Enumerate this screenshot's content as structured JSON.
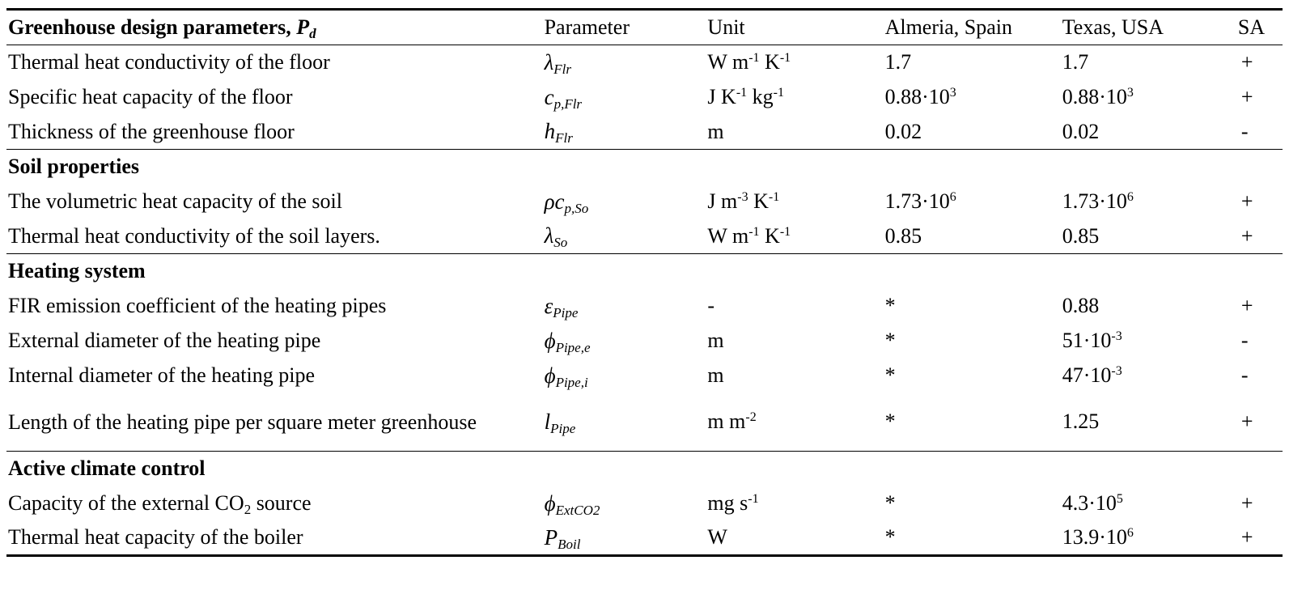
{
  "header": {
    "group_title": "Greenhouse design parameters, ",
    "group_symbol": "P",
    "group_symbol_sub": "d",
    "parameter": "Parameter",
    "unit": "Unit",
    "almeria": "Almeria, Spain",
    "texas": "Texas, USA",
    "sa": "SA"
  },
  "sections": {
    "soil": "Soil properties",
    "heating": "Heating system",
    "climate": "Active climate control"
  },
  "rows": [
    {
      "label": "Thermal heat conductivity of the floor",
      "sym": "λ",
      "sub": "Flr",
      "unit_a": "W m",
      "unit_a_sup": "-1",
      "unit_b": " K",
      "unit_b_sup": "-1",
      "almeria": "1.7",
      "texas": "1.7",
      "sa": "+"
    },
    {
      "label": "Specific heat capacity of the floor",
      "sym": "c",
      "sub": "p,Flr",
      "unit_a": "J K",
      "unit_a_sup": "-1",
      "unit_b": " kg",
      "unit_b_sup": "-1",
      "almeria_base": "0.88·10",
      "almeria_sup": "3",
      "texas_base": "0.88·10",
      "texas_sup": "3",
      "sa": "+"
    },
    {
      "label": "Thickness of the greenhouse floor",
      "sym": "h",
      "sub": "Flr",
      "unit": "m",
      "almeria": "0.02",
      "texas": "0.02",
      "sa": "-"
    },
    {
      "label": "The volumetric heat capacity of the soil",
      "sym": "ρc",
      "sub": "p,So",
      "unit_a": "J m",
      "unit_a_sup": "-3",
      "unit_b": " K",
      "unit_b_sup": "-1",
      "almeria_base": "1.73·10",
      "almeria_sup": "6",
      "texas_base": "1.73·10",
      "texas_sup": "6",
      "sa": "+"
    },
    {
      "label": "Thermal heat conductivity of the soil layers.",
      "sym": "λ",
      "sub": "So",
      "unit_a": "W m",
      "unit_a_sup": "-1",
      "unit_b": " K",
      "unit_b_sup": "-1",
      "almeria": "0.85",
      "texas": "0.85",
      "sa": "+"
    },
    {
      "label": "FIR emission coefficient of the heating pipes",
      "sym": "ε",
      "sub": "Pipe",
      "unit": "-",
      "almeria": "*",
      "texas": "0.88",
      "sa": "+"
    },
    {
      "label": "External diameter of the heating pipe",
      "sym": "ϕ",
      "sub": "Pipe,e",
      "unit": "m",
      "almeria": "*",
      "texas_base": "51·10",
      "texas_sup": "-3",
      "sa": "-"
    },
    {
      "label": "Internal diameter of the heating pipe",
      "sym": "ϕ",
      "sub": "Pipe,i",
      "unit": "m",
      "almeria": "*",
      "texas_base": "47·10",
      "texas_sup": "-3",
      "sa": "-"
    },
    {
      "label": "Length of the heating pipe per square meter greenhouse",
      "sym": "l",
      "sub": "Pipe",
      "unit_a": "m m",
      "unit_a_sup": "-2",
      "almeria": "*",
      "texas": "1.25",
      "sa": "+"
    },
    {
      "label_a": "Capacity of the external CO",
      "label_sub": "2",
      "label_b": " source",
      "sym": "ϕ",
      "sub": "ExtCO2",
      "unit_a": "mg s",
      "unit_a_sup": "-1",
      "almeria": "*",
      "texas_base": "4.3·10",
      "texas_sup": "5",
      "sa": "+"
    },
    {
      "label": "Thermal heat capacity of the boiler",
      "sym": "P",
      "sub": "Boil",
      "unit": "W",
      "almeria": "*",
      "texas_base": "13.9·10",
      "texas_sup": "6",
      "sa": "+"
    }
  ]
}
